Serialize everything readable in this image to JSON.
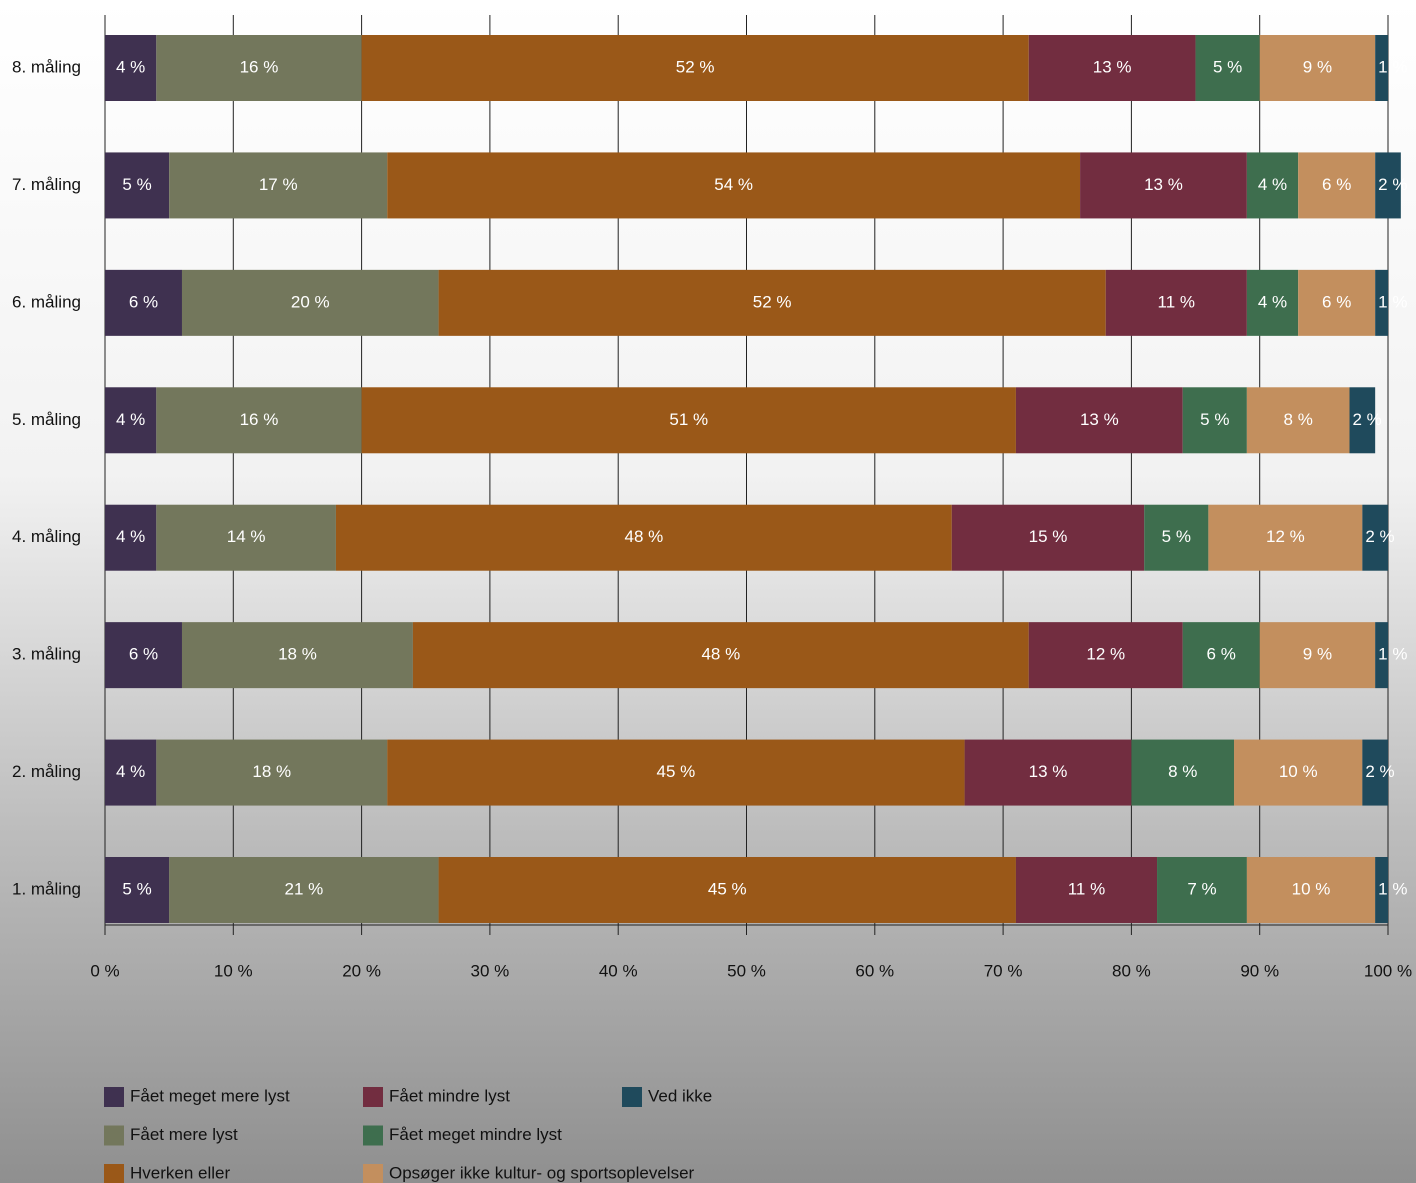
{
  "chart_data": {
    "type": "stacked-bar-horizontal",
    "categories": [
      "8. måling",
      "7. måling",
      "6. måling",
      "5. måling",
      "4. måling",
      "3. måling",
      "2. måling",
      "1. måling"
    ],
    "series": [
      {
        "name": "Fået meget mere lyst",
        "color": "#3f3150",
        "values": [
          4,
          5,
          6,
          4,
          4,
          6,
          4,
          5
        ],
        "value_labels": [
          "4 %",
          "5 %",
          "6 %",
          "4 %",
          "4 %",
          "6 %",
          "4 %",
          "5 %"
        ]
      },
      {
        "name": "Fået mere lyst",
        "color": "#73775c",
        "values": [
          16,
          17,
          20,
          16,
          14,
          18,
          18,
          21
        ],
        "value_labels": [
          "16 %",
          "17 %",
          "20 %",
          "16 %",
          "14 %",
          "18 %",
          "18 %",
          "21 %"
        ]
      },
      {
        "name": "Hverken eller",
        "color": "#9a5818",
        "values": [
          52,
          54,
          52,
          51,
          48,
          48,
          45,
          45
        ],
        "value_labels": [
          "52 %",
          "54 %",
          "52 %",
          "51 %",
          "48 %",
          "48 %",
          "45 %",
          "45 %"
        ]
      },
      {
        "name": "Fået mindre lyst",
        "color": "#722d40",
        "values": [
          13,
          13,
          11,
          13,
          15,
          12,
          13,
          11
        ],
        "value_labels": [
          "13 %",
          "13 %",
          "11 %",
          "13 %",
          "15 %",
          "12 %",
          "13 %",
          "11 %"
        ]
      },
      {
        "name": "Fået meget mindre lyst",
        "color": "#3e6e4e",
        "values": [
          5,
          4,
          4,
          5,
          5,
          6,
          8,
          7
        ],
        "value_labels": [
          "5 %",
          "4 %",
          "4 %",
          "5 %",
          "5 %",
          "6 %",
          "8 %",
          "7 %"
        ]
      },
      {
        "name": "Opsøger ikke kultur- og sportsoplevelser",
        "color": "#c38f5e",
        "values": [
          9,
          6,
          6,
          8,
          12,
          9,
          10,
          10
        ],
        "value_labels": [
          "9 %",
          "6 %",
          "6 %",
          "8 %",
          "12 %",
          "9 %",
          "10 %",
          "10 %"
        ]
      },
      {
        "name": "Ved ikke",
        "color": "#1f4a5c",
        "values": [
          1,
          2,
          1,
          2,
          2,
          1,
          2,
          1
        ],
        "value_labels": [
          "1 %",
          "2 %",
          "1 %",
          "2 %",
          "2 %",
          "1 %",
          "2 %",
          "1 %"
        ]
      }
    ],
    "xlim": [
      0,
      100
    ],
    "xticks": [
      {
        "value": 0,
        "label": "0 %"
      },
      {
        "value": 10,
        "label": "10 %"
      },
      {
        "value": 20,
        "label": "20 %"
      },
      {
        "value": 30,
        "label": "30 %"
      },
      {
        "value": 40,
        "label": "40 %"
      },
      {
        "value": 50,
        "label": "50 %"
      },
      {
        "value": 60,
        "label": "60 %"
      },
      {
        "value": 70,
        "label": "70 %"
      },
      {
        "value": 80,
        "label": "80 %"
      },
      {
        "value": 90,
        "label": "90 %"
      },
      {
        "value": 100,
        "label": "100 %"
      }
    ],
    "grid": true,
    "legend": "bottom"
  }
}
